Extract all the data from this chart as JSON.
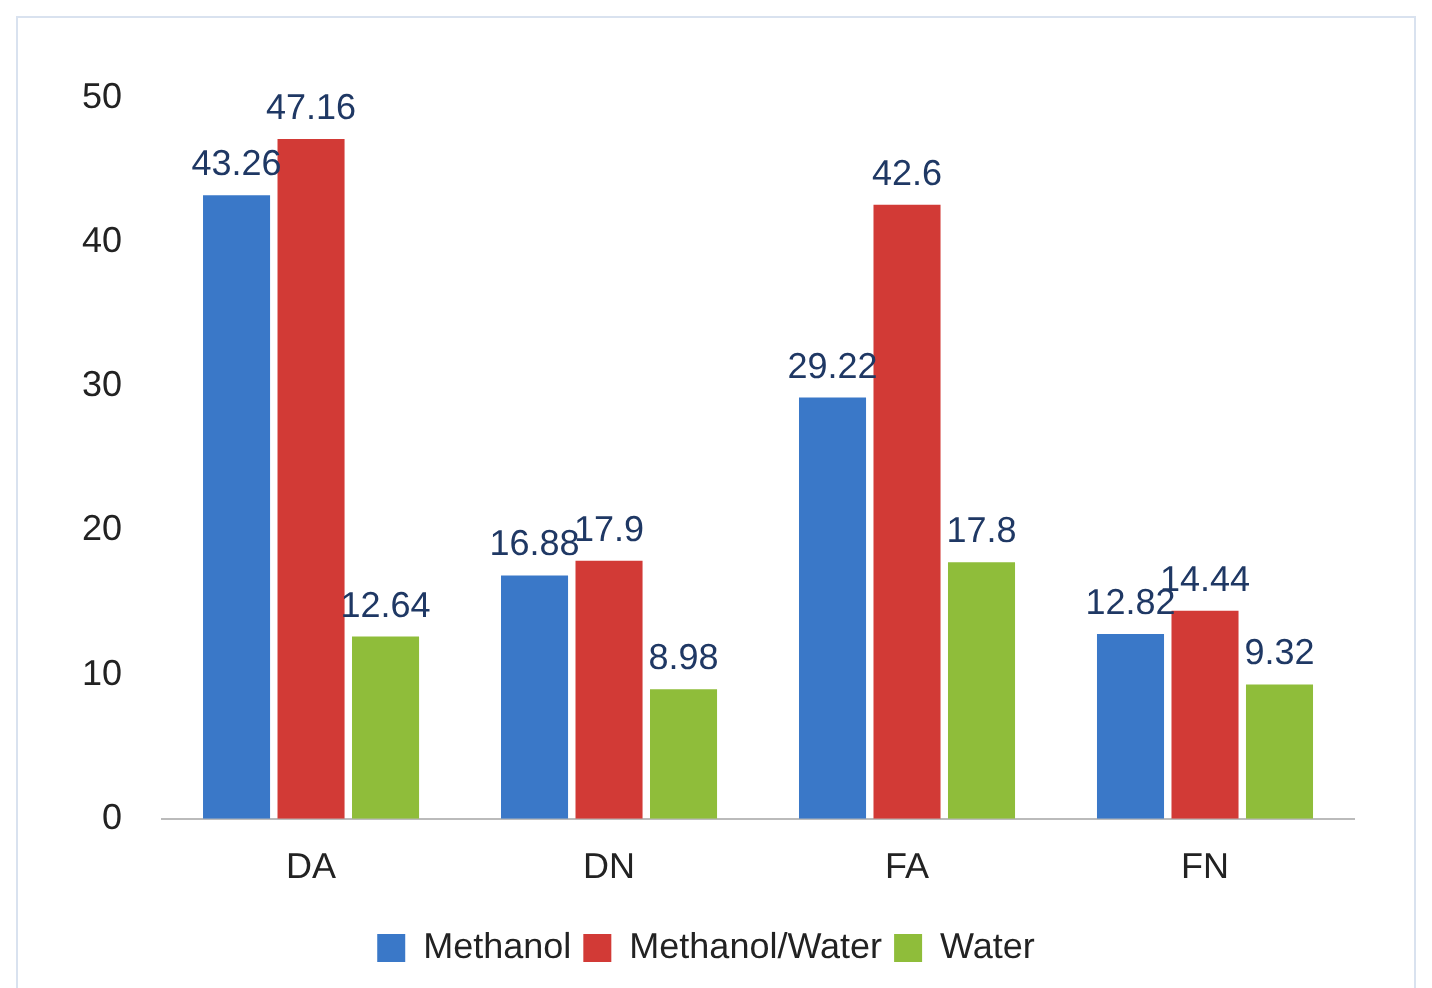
{
  "chart_data": {
    "type": "bar",
    "categories": [
      "DA",
      "DN",
      "FA",
      "FN"
    ],
    "series": [
      {
        "name": "Methanol",
        "color": "#3a78c8",
        "values": [
          43.26,
          16.88,
          29.22,
          12.82
        ]
      },
      {
        "name": "Methanol/Water",
        "color": "#d23a36",
        "values": [
          47.16,
          17.9,
          42.6,
          14.44
        ]
      },
      {
        "name": "Water",
        "color": "#8fbd3a",
        "values": [
          12.64,
          8.98,
          17.8,
          9.32
        ]
      }
    ],
    "ylim": [
      0,
      50
    ],
    "yticks": [
      0,
      10,
      20,
      30,
      40,
      50
    ],
    "grid": false,
    "legend": "bottom",
    "data_labels": true
  }
}
